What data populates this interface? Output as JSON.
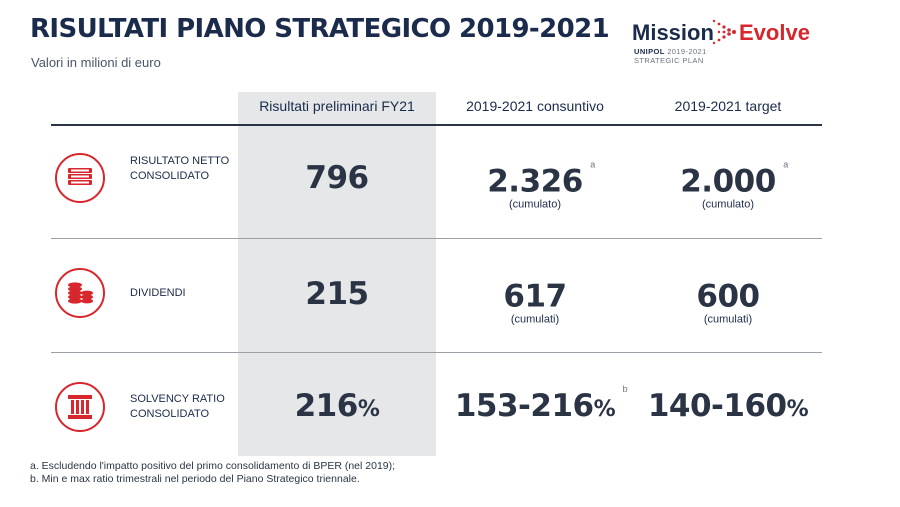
{
  "title": "RISULTATI PIANO STRATEGICO 2019-2021",
  "subtitle": "Valori in milioni di euro",
  "logo": {
    "mission": "Mission",
    "evolve": "Evolve",
    "brand": "UNIPOL",
    "years": "2019-2021",
    "plan": "STRATEGIC PLAN"
  },
  "columns": [
    "Risultati preliminari FY21",
    "2019-2021 consuntivo",
    "2019-2021 target"
  ],
  "rows": [
    {
      "label": "RISULTATO NETTO CONSOLIDATO",
      "icon": "banknotes-icon",
      "fy21": "796",
      "consuntivo": "2.326",
      "consuntivo_note": "a",
      "consuntivo_caption": "(cumulato)",
      "target": "2.000",
      "target_note": "a",
      "target_caption": "(cumulato)"
    },
    {
      "label": "DIVIDENDI",
      "icon": "coins-icon",
      "fy21": "215",
      "consuntivo": "617",
      "consuntivo_caption": "(cumulati)",
      "target": "600",
      "target_caption": "(cumulati)"
    },
    {
      "label": "SOLVENCY RATIO CONSOLIDATO",
      "icon": "column-icon",
      "fy21": "216",
      "fy21_unit": "%",
      "consuntivo": "153-216",
      "consuntivo_unit": "%",
      "consuntivo_note": "b",
      "target": "140-160",
      "target_unit": "%"
    }
  ],
  "footnotes": [
    "a. Escludendo l'impatto positivo del primo consolidamento di BPER (nel 2019);",
    "b. Min e max ratio trimestrali nel periodo del Piano Strategico triennale."
  ],
  "colors": {
    "accent": "#d7262c",
    "navy": "#1b2b4b",
    "highlight": "#e5e7e9"
  }
}
